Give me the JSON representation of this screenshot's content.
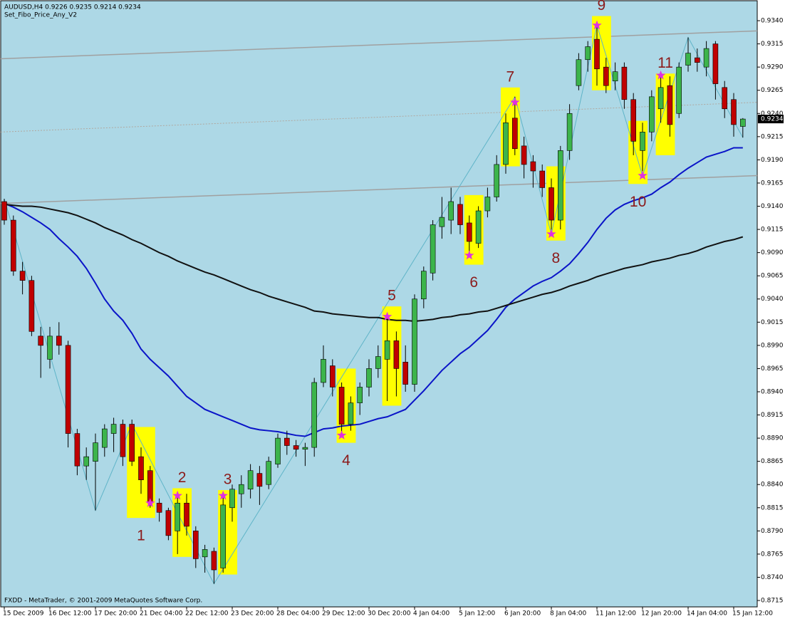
{
  "chart_data": {
    "type": "candlestick",
    "title": "AUDUSD,H4  0.9226 0.9235 0.9214 0.9234",
    "subtitle": "Set_Fibo_Price_Any_V2",
    "footer": "FXDD - MetaTrader, © 2001-2009 MetaQuotes Software Corp.",
    "background": "#add8e6",
    "up_color": "#3cb44b",
    "down_color": "#c00000",
    "categories": [
      "15 Dec 2009",
      null,
      null,
      null,
      null,
      "16 Dec 12:00",
      null,
      null,
      null,
      null,
      "17 Dec 20:00",
      null,
      null,
      null,
      null,
      "21 Dec 04:00",
      null,
      null,
      null,
      null,
      "22 Dec 12:00",
      null,
      null,
      null,
      null,
      "23 Dec 20:00",
      null,
      null,
      null,
      null,
      "28 Dec 04:00",
      null,
      null,
      null,
      null,
      "29 Dec 12:00",
      null,
      null,
      null,
      null,
      "30 Dec 20:00",
      null,
      null,
      null,
      null,
      "4 Jan 04:00",
      null,
      null,
      null,
      null,
      "5 Jan 12:00",
      null,
      null,
      null,
      null,
      "6 Jan 20:00",
      null,
      null,
      null,
      null,
      "8 Jan 04:00",
      null,
      null,
      null,
      null,
      "11 Jan 12:00",
      null,
      null,
      null,
      null,
      "12 Jan 20:00",
      null,
      null,
      null,
      null,
      "14 Jan 04:00",
      null,
      null,
      null,
      null,
      "15 Jan 12:00",
      null
    ],
    "open": [
      0.9145,
      0.9125,
      0.907,
      0.906,
      0.9,
      0.8975,
      0.9,
      0.899,
      0.8895,
      0.886,
      0.8865,
      0.888,
      0.8895,
      0.8905,
      0.8905,
      0.887,
      0.8855,
      0.882,
      0.8812,
      0.879,
      0.882,
      0.879,
      0.8762,
      0.8768,
      0.875,
      0.8815,
      0.883,
      0.8835,
      0.8852,
      0.884,
      0.8862,
      0.889,
      0.8882,
      0.8878,
      0.888,
      0.895,
      0.8968,
      0.8945,
      0.8905,
      0.8928,
      0.8945,
      0.8965,
      0.8975,
      0.8995,
      0.8972,
      0.8948,
      0.904,
      0.9068,
      0.9118,
      0.9125,
      0.9142,
      0.9122,
      0.91,
      0.9135,
      0.915,
      0.9185,
      0.9235,
      0.9205,
      0.9188,
      0.9178,
      0.916,
      0.9125,
      0.92,
      0.927,
      0.9298,
      0.932,
      0.929,
      0.9275,
      0.929,
      0.9255,
      0.92,
      0.922,
      0.9245,
      0.927,
      0.924,
      0.9292,
      0.93,
      0.929,
      0.9315,
      0.9268,
      0.9255,
      0.9226
    ],
    "high": [
      0.9148,
      0.913,
      0.908,
      0.9065,
      0.901,
      0.901,
      0.9015,
      0.8995,
      0.89,
      0.888,
      0.8895,
      0.8905,
      0.8912,
      0.891,
      0.891,
      0.888,
      0.886,
      0.8825,
      0.8815,
      0.883,
      0.883,
      0.8795,
      0.8775,
      0.8772,
      0.883,
      0.884,
      0.885,
      0.8862,
      0.886,
      0.887,
      0.8895,
      0.8898,
      0.8888,
      0.8885,
      0.8955,
      0.899,
      0.8975,
      0.895,
      0.8935,
      0.895,
      0.8975,
      0.899,
      0.9021,
      0.9005,
      0.899,
      0.9045,
      0.9075,
      0.9125,
      0.915,
      0.916,
      0.915,
      0.913,
      0.914,
      0.916,
      0.9195,
      0.924,
      0.9258,
      0.9215,
      0.9195,
      0.9185,
      0.917,
      0.9205,
      0.925,
      0.9305,
      0.9318,
      0.9335,
      0.93,
      0.9295,
      0.9295,
      0.9262,
      0.923,
      0.9265,
      0.9281,
      0.928,
      0.9295,
      0.9322,
      0.931,
      0.9318,
      0.9318,
      0.9275,
      0.9262,
      0.9235
    ],
    "low": [
      0.912,
      0.9065,
      0.9045,
      0.9,
      0.8955,
      0.8965,
      0.898,
      0.888,
      0.885,
      0.8845,
      0.8812,
      0.887,
      0.8875,
      0.886,
      0.886,
      0.883,
      0.8815,
      0.88,
      0.878,
      0.8765,
      0.8785,
      0.875,
      0.8745,
      0.8733,
      0.8745,
      0.88,
      0.8815,
      0.8825,
      0.8818,
      0.8835,
      0.8858,
      0.8872,
      0.887,
      0.886,
      0.887,
      0.8945,
      0.8935,
      0.8893,
      0.8898,
      0.8915,
      0.8935,
      0.8955,
      0.893,
      0.8935,
      0.894,
      0.894,
      0.903,
      0.906,
      0.9105,
      0.911,
      0.911,
      0.9087,
      0.9095,
      0.9128,
      0.9145,
      0.9175,
      0.9195,
      0.917,
      0.916,
      0.915,
      0.911,
      0.9115,
      0.919,
      0.9265,
      0.9285,
      0.927,
      0.9262,
      0.9265,
      0.9245,
      0.9195,
      0.9173,
      0.921,
      0.923,
      0.9215,
      0.9235,
      0.9285,
      0.9285,
      0.928,
      0.9255,
      0.9235,
      0.9215,
      0.9214
    ],
    "close": [
      0.9125,
      0.907,
      0.906,
      0.9005,
      0.899,
      0.9,
      0.899,
      0.8895,
      0.886,
      0.887,
      0.8885,
      0.89,
      0.8905,
      0.887,
      0.8865,
      0.8845,
      0.882,
      0.881,
      0.8785,
      0.882,
      0.8795,
      0.876,
      0.877,
      0.8748,
      0.8818,
      0.8835,
      0.884,
      0.8855,
      0.8838,
      0.8865,
      0.889,
      0.8882,
      0.8878,
      0.888,
      0.895,
      0.8975,
      0.8945,
      0.8905,
      0.8928,
      0.8945,
      0.8965,
      0.8978,
      0.8995,
      0.8965,
      0.8948,
      0.904,
      0.907,
      0.912,
      0.9128,
      0.9145,
      0.912,
      0.9102,
      0.9135,
      0.915,
      0.9185,
      0.923,
      0.9202,
      0.9185,
      0.9178,
      0.916,
      0.9125,
      0.92,
      0.924,
      0.9298,
      0.9312,
      0.9288,
      0.927,
      0.9285,
      0.9255,
      0.921,
      0.922,
      0.9258,
      0.9268,
      0.9228,
      0.929,
      0.9305,
      0.9295,
      0.931,
      0.9272,
      0.9245,
      0.9228,
      0.9234
    ],
    "lines": [
      {
        "color": "#0a14c8",
        "values": [
          0.9143,
          0.9139,
          0.9134,
          0.9128,
          0.9122,
          0.9115,
          0.9105,
          0.9096,
          0.9086,
          0.9073,
          0.9057,
          0.904,
          0.9027,
          0.9017,
          0.9003,
          0.8986,
          0.8975,
          0.8966,
          0.8957,
          0.8946,
          0.8935,
          0.8928,
          0.8921,
          0.8917,
          0.8913,
          0.8909,
          0.8905,
          0.8901,
          0.8899,
          0.8898,
          0.8897,
          0.8895,
          0.8893,
          0.8892,
          0.8896,
          0.89,
          0.8901,
          0.8903,
          0.8904,
          0.8905,
          0.8908,
          0.8911,
          0.8913,
          0.8917,
          0.8921,
          0.8931,
          0.8941,
          0.8952,
          0.8963,
          0.8972,
          0.8981,
          0.8988,
          0.8997,
          0.9006,
          0.9018,
          0.9031,
          0.904,
          0.9047,
          0.9054,
          0.9059,
          0.9063,
          0.907,
          0.9078,
          0.9089,
          0.9101,
          0.9115,
          0.9127,
          0.9136,
          0.9142,
          0.9146,
          0.9149,
          0.9153,
          0.916,
          0.9166,
          0.9174,
          0.9181,
          0.9187,
          0.9193,
          0.9196,
          0.9199,
          0.9203,
          0.9203
        ]
      },
      {
        "color": "#111111",
        "values": [
          0.9142,
          0.9141,
          0.914,
          0.914,
          0.9139,
          0.9137,
          0.9135,
          0.9133,
          0.913,
          0.9126,
          0.9122,
          0.9117,
          0.9113,
          0.9109,
          0.9104,
          0.91,
          0.9095,
          0.909,
          0.9086,
          0.9081,
          0.9077,
          0.9073,
          0.9069,
          0.9066,
          0.9062,
          0.9058,
          0.9054,
          0.905,
          0.9047,
          0.9043,
          0.904,
          0.9037,
          0.9034,
          0.9031,
          0.9027,
          0.9026,
          0.9024,
          0.9023,
          0.9022,
          0.9021,
          0.902,
          0.902,
          0.9018,
          0.9017,
          0.9017,
          0.9016,
          0.9017,
          0.9018,
          0.902,
          0.9021,
          0.9023,
          0.9024,
          0.9026,
          0.9027,
          0.903,
          0.9033,
          0.9036,
          0.9039,
          0.9042,
          0.9045,
          0.9047,
          0.905,
          0.9054,
          0.9057,
          0.906,
          0.9064,
          0.9067,
          0.907,
          0.9073,
          0.9075,
          0.9077,
          0.908,
          0.9082,
          0.9084,
          0.9087,
          0.9089,
          0.9092,
          0.9096,
          0.9099,
          0.9102,
          0.9104,
          0.9107
        ]
      }
    ],
    "zigzag": {
      "color": "#5fb4c8",
      "x": [
        0,
        10,
        14,
        23,
        56,
        60,
        65,
        70,
        75,
        81
      ],
      "values": [
        0.9148,
        0.8812,
        0.8905,
        0.8733,
        0.9258,
        0.911,
        0.9335,
        0.9173,
        0.9322,
        0.9214
      ]
    },
    "trendlines": [
      {
        "color": "#a0a0a0",
        "style": "solid",
        "start": 0.9299,
        "end": 0.9329
      },
      {
        "color": "#b0a8a0",
        "style": "dotted",
        "start": 0.922,
        "end": 0.9252
      },
      {
        "color": "#a0a0a0",
        "style": "solid",
        "start": 0.9143,
        "end": 0.9173
      }
    ],
    "signals": [
      {
        "label": "1",
        "bars": [
          14,
          16
        ],
        "high": 0.8902,
        "low": 0.8804,
        "star_bar": 16,
        "star": 0.882,
        "label_side": "below"
      },
      {
        "label": "2",
        "bars": [
          19,
          20
        ],
        "high": 0.8836,
        "low": 0.8762,
        "star_bar": 19,
        "star": 0.8828,
        "label_side": "above"
      },
      {
        "label": "3",
        "bars": [
          24,
          25
        ],
        "high": 0.8834,
        "low": 0.8743,
        "star_bar": 24,
        "star": 0.8828,
        "label_side": "above"
      },
      {
        "label": "4",
        "bars": [
          37,
          38
        ],
        "high": 0.8965,
        "low": 0.8885,
        "star_bar": 37,
        "star": 0.8893,
        "label_side": "below"
      },
      {
        "label": "5",
        "bars": [
          42,
          43
        ],
        "high": 0.9032,
        "low": 0.8925,
        "star_bar": 42,
        "star": 0.9021,
        "label_side": "above"
      },
      {
        "label": "6",
        "bars": [
          51,
          52
        ],
        "high": 0.9152,
        "low": 0.9077,
        "star_bar": 51,
        "star": 0.9087,
        "label_side": "below"
      },
      {
        "label": "7",
        "bars": [
          55,
          56
        ],
        "high": 0.9268,
        "low": 0.9183,
        "star_bar": 56,
        "star": 0.9252,
        "label_side": "above"
      },
      {
        "label": "8",
        "bars": [
          60,
          61
        ],
        "high": 0.9183,
        "low": 0.9103,
        "star_bar": 60,
        "star": 0.911,
        "label_side": "below"
      },
      {
        "label": "9",
        "bars": [
          65,
          66
        ],
        "high": 0.9345,
        "low": 0.9265,
        "star_bar": 65,
        "star": 0.9335,
        "label_side": "above"
      },
      {
        "label": "10",
        "bars": [
          69,
          70
        ],
        "high": 0.9232,
        "low": 0.9164,
        "star_bar": 70,
        "star": 0.9173,
        "label_side": "below"
      },
      {
        "label": "11",
        "bars": [
          72,
          73
        ],
        "high": 0.9283,
        "low": 0.9195,
        "star_bar": 72,
        "star": 0.9281,
        "label_side": "above"
      }
    ],
    "price_label": {
      "value": 0.9234,
      "label": "0.9234"
    },
    "ylim": [
      0.87081,
      0.93623
    ],
    "yticks": [
      {
        "value": 0.934,
        "label": "0.9340"
      },
      {
        "value": 0.9315,
        "label": "0.9315"
      },
      {
        "value": 0.929,
        "label": "0.9290"
      },
      {
        "value": 0.9265,
        "label": "0.9265"
      },
      {
        "value": 0.924,
        "label": "0.9240"
      },
      {
        "value": 0.9215,
        "label": "0.9215"
      },
      {
        "value": 0.919,
        "label": "0.9190"
      },
      {
        "value": 0.9165,
        "label": "0.9165"
      },
      {
        "value": 0.914,
        "label": "0.9140"
      },
      {
        "value": 0.9115,
        "label": "0.9115"
      },
      {
        "value": 0.909,
        "label": "0.9090"
      },
      {
        "value": 0.9065,
        "label": "0.9065"
      },
      {
        "value": 0.904,
        "label": "0.9040"
      },
      {
        "value": 0.9015,
        "label": "0.9015"
      },
      {
        "value": 0.899,
        "label": "0.8990"
      },
      {
        "value": 0.8965,
        "label": "0.8965"
      },
      {
        "value": 0.894,
        "label": "0.8940"
      },
      {
        "value": 0.8915,
        "label": "0.8915"
      },
      {
        "value": 0.889,
        "label": "0.8890"
      },
      {
        "value": 0.8865,
        "label": "0.8865"
      },
      {
        "value": 0.884,
        "label": "0.8840"
      },
      {
        "value": 0.8815,
        "label": "0.8815"
      },
      {
        "value": 0.879,
        "label": "0.8790"
      },
      {
        "value": 0.8765,
        "label": "0.8765"
      },
      {
        "value": 0.874,
        "label": "0.8740"
      },
      {
        "value": 0.8715,
        "label": "0.8715"
      }
    ],
    "grid": false
  }
}
